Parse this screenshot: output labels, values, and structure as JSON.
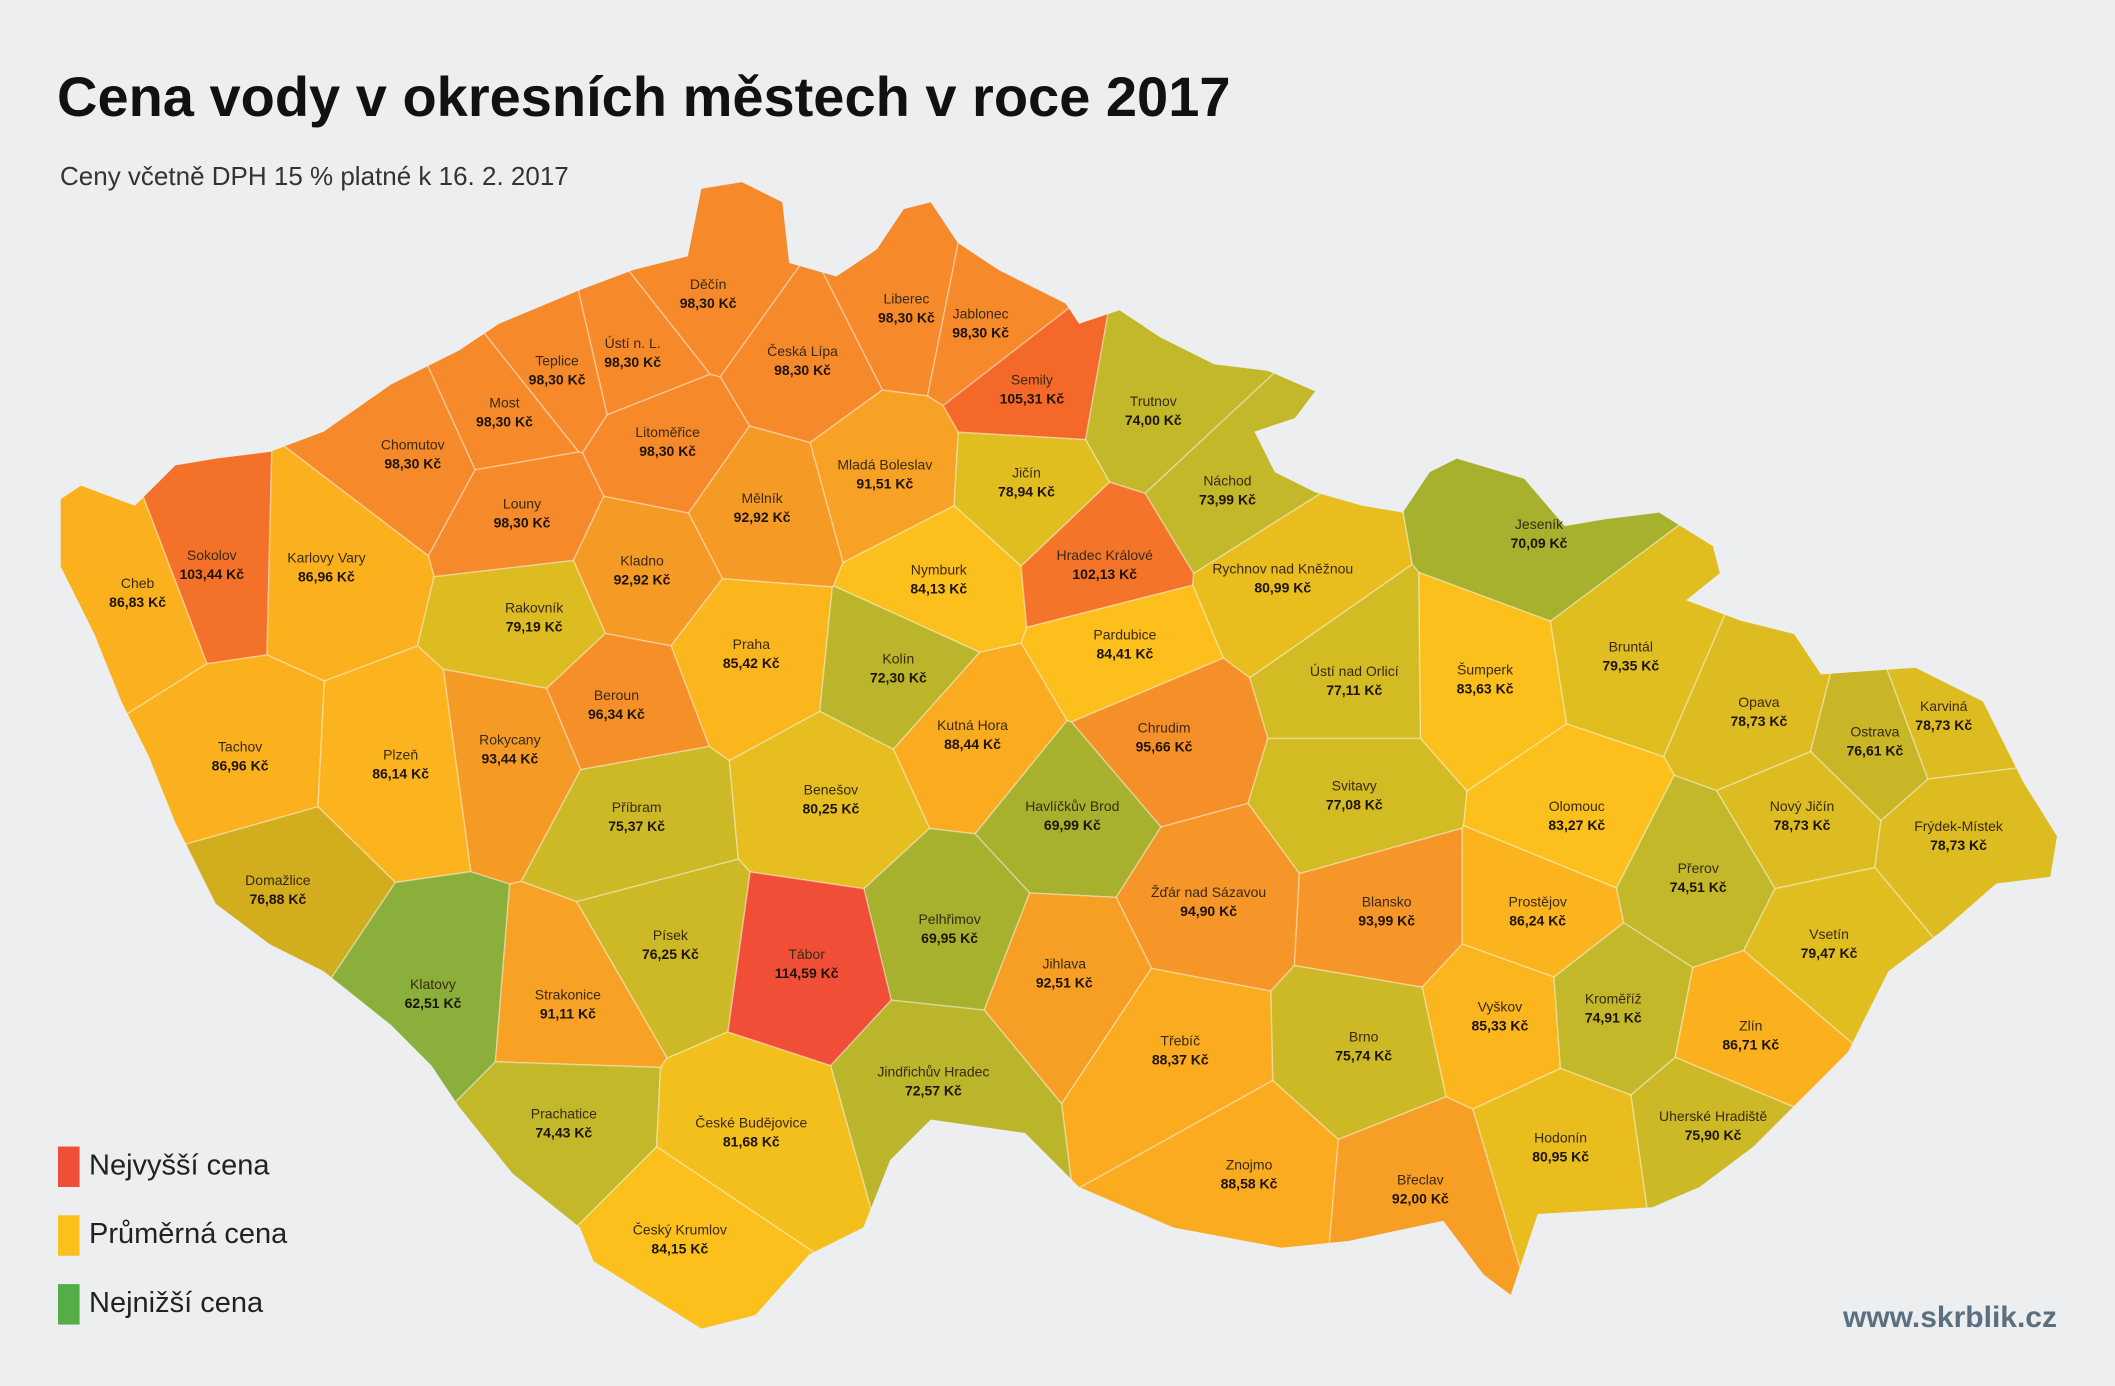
{
  "header": {
    "title": "Cena vody v okresních městech v roce 2017",
    "subtitle": "Ceny včetně DPH 15 % platné k 16. 2. 2017"
  },
  "districts": [
    {
      "name": "Děčín",
      "price": "98,30 Kč",
      "color": "#f68a2a"
    },
    {
      "name": "Liberec",
      "price": "98,30 Kč",
      "color": "#f68a2a"
    },
    {
      "name": "Jablonec",
      "price": "98,30 Kč",
      "color": "#f68a2a"
    },
    {
      "name": "Ústí n. L.",
      "price": "98,30 Kč",
      "color": "#f68a2a"
    },
    {
      "name": "Teplice",
      "price": "98,30 Kč",
      "color": "#f68a2a"
    },
    {
      "name": "Česká Lípa",
      "price": "98,30 Kč",
      "color": "#f68a2a"
    },
    {
      "name": "Semily",
      "price": "105,31 Kč",
      "color": "#f4692a"
    },
    {
      "name": "Trutnov",
      "price": "74,00 Kč",
      "color": "#c2b82a"
    },
    {
      "name": "Most",
      "price": "98,30 Kč",
      "color": "#f68a2a"
    },
    {
      "name": "Chomutov",
      "price": "98,30 Kč",
      "color": "#f68a2a"
    },
    {
      "name": "Litoměřice",
      "price": "98,30 Kč",
      "color": "#f68a2a"
    },
    {
      "name": "Mladá Boleslav",
      "price": "91,51 Kč",
      "color": "#f7a225"
    },
    {
      "name": "Jičín",
      "price": "78,94 Kč",
      "color": "#e0be20"
    },
    {
      "name": "Náchod",
      "price": "73,99 Kč",
      "color": "#c2b82a"
    },
    {
      "name": "Louny",
      "price": "98,30 Kč",
      "color": "#f68a2a"
    },
    {
      "name": "Mělník",
      "price": "92,92 Kč",
      "color": "#f69a26"
    },
    {
      "name": "Sokolov",
      "price": "103,44 Kč",
      "color": "#f4712a"
    },
    {
      "name": "Karlovy Vary",
      "price": "86,96 Kč",
      "color": "#fbb11e"
    },
    {
      "name": "Cheb",
      "price": "86,83 Kč",
      "color": "#fbb11e"
    },
    {
      "name": "Kladno",
      "price": "92,92 Kč",
      "color": "#f69a26"
    },
    {
      "name": "Nymburk",
      "price": "84,13 Kč",
      "color": "#fcc01c"
    },
    {
      "name": "Hradec Králové",
      "price": "102,13 Kč",
      "color": "#f4752a"
    },
    {
      "name": "Rychnov nad Kněžnou",
      "price": "80,99 Kč",
      "color": "#e9bd1e"
    },
    {
      "name": "Jeseník",
      "price": "70,09 Kč",
      "color": "#a8b12e"
    },
    {
      "name": "Rakovník",
      "price": "79,19 Kč",
      "color": "#dcbc21"
    },
    {
      "name": "Praha",
      "price": "85,42 Kč",
      "color": "#fbb51d"
    },
    {
      "name": "Kolín",
      "price": "72,30 Kč",
      "color": "#bab52b"
    },
    {
      "name": "Pardubice",
      "price": "84,41 Kč",
      "color": "#fcbf1c"
    },
    {
      "name": "Šumperk",
      "price": "83,63 Kč",
      "color": "#fcc01c"
    },
    {
      "name": "Ústí nad Orlicí",
      "price": "77,11 Kč",
      "color": "#d3bb23"
    },
    {
      "name": "Bruntál",
      "price": "79,35 Kč",
      "color": "#e0be20"
    },
    {
      "name": "Beroun",
      "price": "96,34 Kč",
      "color": "#f58f28"
    },
    {
      "name": "Rokycany",
      "price": "93,44 Kč",
      "color": "#f69a26"
    },
    {
      "name": "Tachov",
      "price": "86,96 Kč",
      "color": "#fbb11e"
    },
    {
      "name": "Plzeň",
      "price": "86,14 Kč",
      "color": "#fbb31e"
    },
    {
      "name": "Kutná Hora",
      "price": "88,44 Kč",
      "color": "#faab20"
    },
    {
      "name": "Chrudim",
      "price": "95,66 Kč",
      "color": "#f58f28"
    },
    {
      "name": "Opava",
      "price": "78,73 Kč",
      "color": "#dcbc21"
    },
    {
      "name": "Ostrava",
      "price": "76,61 Kč",
      "color": "#c8b627"
    },
    {
      "name": "Karviná",
      "price": "78,73 Kč",
      "color": "#dcbc21"
    },
    {
      "name": "Příbram",
      "price": "75,37 Kč",
      "color": "#cdb925"
    },
    {
      "name": "Benešov",
      "price": "80,25 Kč",
      "color": "#e6be1f"
    },
    {
      "name": "Havlíčkův Brod",
      "price": "69,99 Kč",
      "color": "#a8b12e"
    },
    {
      "name": "Svitavy",
      "price": "77,08 Kč",
      "color": "#d3bb23"
    },
    {
      "name": "Olomouc",
      "price": "83,27 Kč",
      "color": "#fcc01c"
    },
    {
      "name": "Nový Jičín",
      "price": "78,73 Kč",
      "color": "#dcbc21"
    },
    {
      "name": "Frýdek-Místek",
      "price": "78,73 Kč",
      "color": "#dcbc21"
    },
    {
      "name": "Domažlice",
      "price": "76,88 Kč",
      "color": "#d2ad1e"
    },
    {
      "name": "Žďár nad Sázavou",
      "price": "94,90 Kč",
      "color": "#f69528"
    },
    {
      "name": "Blansko",
      "price": "93,99 Kč",
      "color": "#f69528"
    },
    {
      "name": "Prostějov",
      "price": "86,24 Kč",
      "color": "#fbb31e"
    },
    {
      "name": "Přerov",
      "price": "74,51 Kč",
      "color": "#c2b82a"
    },
    {
      "name": "Pelhřimov",
      "price": "69,95 Kč",
      "color": "#a8b12e"
    },
    {
      "name": "Tábor",
      "price": "114,59 Kč",
      "color": "#f04e37"
    },
    {
      "name": "Písek",
      "price": "76,25 Kč",
      "color": "#cdb925"
    },
    {
      "name": "Jihlava",
      "price": "92,51 Kč",
      "color": "#f79f25"
    },
    {
      "name": "Vsetín",
      "price": "79,47 Kč",
      "color": "#e0be20"
    },
    {
      "name": "Klatovy",
      "price": "62,51 Kč",
      "color": "#8aaf3a"
    },
    {
      "name": "Strakonice",
      "price": "91,11 Kč",
      "color": "#f7a225"
    },
    {
      "name": "Vyškov",
      "price": "85,33 Kč",
      "color": "#fbb51d"
    },
    {
      "name": "Kroměříž",
      "price": "74,91 Kč",
      "color": "#c2b82a"
    },
    {
      "name": "Brno",
      "price": "75,74 Kč",
      "color": "#cdb925"
    },
    {
      "name": "Zlín",
      "price": "86,71 Kč",
      "color": "#fbb11e"
    },
    {
      "name": "Třebíč",
      "price": "88,37 Kč",
      "color": "#faab20"
    },
    {
      "name": "Jindřichův Hradec",
      "price": "72,57 Kč",
      "color": "#bab52b"
    },
    {
      "name": "Prachatice",
      "price": "74,43 Kč",
      "color": "#c2b82a"
    },
    {
      "name": "České Budějovice",
      "price": "81,68 Kč",
      "color": "#f2bf1d"
    },
    {
      "name": "Uherské Hradiště",
      "price": "75,90 Kč",
      "color": "#cdb925"
    },
    {
      "name": "Hodonín",
      "price": "80,95 Kč",
      "color": "#e9bd1e"
    },
    {
      "name": "Znojmo",
      "price": "88,58 Kč",
      "color": "#faab20"
    },
    {
      "name": "Břeclav",
      "price": "92,00 Kč",
      "color": "#f79f25"
    },
    {
      "name": "Český Krumlov",
      "price": "84,15 Kč",
      "color": "#fcc01c"
    }
  ],
  "legend": [
    {
      "label": "Nejvyšší cena",
      "color": "#f04e37"
    },
    {
      "label": "Průměrná cena",
      "color": "#fcc01c"
    },
    {
      "label": "Nejnižší cena",
      "color": "#55ad48"
    }
  ],
  "footer": {
    "url": "www.skrblik.cz"
  }
}
